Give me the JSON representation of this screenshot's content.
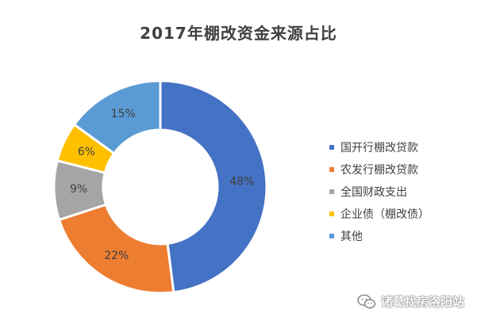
{
  "chart_data": {
    "type": "pie",
    "style": "donut",
    "title": "2017年棚改资金来源占比",
    "categories": [
      "国开行棚改贷款",
      "农发行棚改贷款",
      "全国财政支出",
      "企业债（棚改债）",
      "其他"
    ],
    "values": [
      48,
      22,
      9,
      6,
      15
    ],
    "labels": [
      "48%",
      "22%",
      "9%",
      "6%",
      "15%"
    ],
    "colors": [
      "#4472C4",
      "#ED7D31",
      "#A5A5A5",
      "#FFC000",
      "#5B9BD5"
    ],
    "legend_position": "right"
  },
  "watermark": {
    "text": "诸葛找房洛阳站",
    "icon": "wechat-icon"
  }
}
